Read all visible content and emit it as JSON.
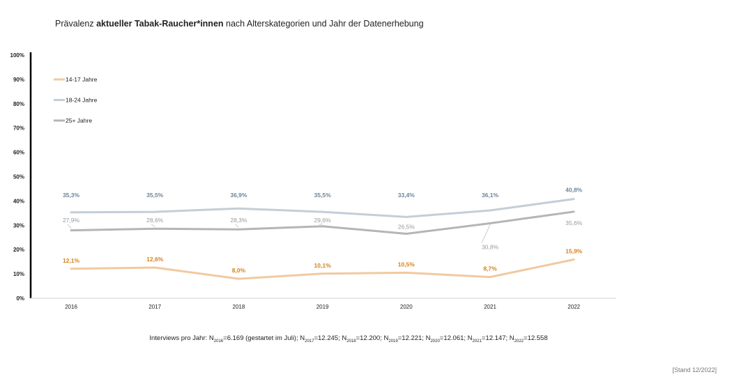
{
  "title": {
    "prefix": "Prävalenz ",
    "bold": "aktueller Tabak-Raucher*innen",
    "suffix": " nach Alterskategorien und Jahr der Datenerhebung"
  },
  "footnote": {
    "prefix": "Interviews pro Jahr: ",
    "items": [
      {
        "n": "N",
        "sub": "2016",
        "val": "=6.169 (gestartet im Juli)"
      },
      {
        "n": "; N",
        "sub": "2017",
        "val": "=12.245"
      },
      {
        "n": "; N",
        "sub": "2018",
        "val": "=12.200"
      },
      {
        "n": "; N",
        "sub": "2019",
        "val": "=12.221"
      },
      {
        "n": "; N",
        "sub": "2020",
        "val": "=12.061"
      },
      {
        "n": "; N",
        "sub": "2021",
        "val": "=12.147"
      },
      {
        "n": "; N",
        "sub": "2022",
        "val": "=12.558"
      }
    ]
  },
  "stand": "[Stand 12/2022]",
  "chart_data": {
    "type": "line",
    "x": [
      "2016",
      "2017",
      "2018",
      "2019",
      "2020",
      "2021",
      "2022"
    ],
    "ylim": [
      0,
      100
    ],
    "yticks": [
      "0%",
      "10%",
      "20%",
      "30%",
      "40%",
      "50%",
      "60%",
      "70%",
      "80%",
      "90%",
      "100%"
    ],
    "grid": false,
    "legend": "top-left",
    "series": [
      {
        "name": "14-17 Jahre",
        "color": "#f1c9a0",
        "label_color": "#d4821e",
        "values": [
          12.1,
          12.6,
          8.0,
          10.1,
          10.5,
          8.7,
          15.9
        ],
        "labels": [
          "12,1%",
          "12,6%",
          "8,0%",
          "10,1%",
          "10,5%",
          "8,7%",
          "15,9%"
        ]
      },
      {
        "name": "18-24 Jahre",
        "color": "#c3ced8",
        "label_color": "#6e859a",
        "values": [
          35.3,
          35.5,
          36.9,
          35.5,
          33.4,
          36.1,
          40.8
        ],
        "labels": [
          "35,3%",
          "35,5%",
          "36,9%",
          "35,5%",
          "33,4%",
          "36,1%",
          "40,8%"
        ]
      },
      {
        "name": "25+ Jahre",
        "color": "#b5b5b5",
        "label_color": "#999999",
        "values": [
          27.9,
          28.6,
          28.3,
          29.6,
          26.5,
          30.8,
          35.6
        ],
        "labels": [
          "27,9%",
          "28,6%",
          "28,3%",
          "29,6%",
          "26,5%",
          "30,8%",
          "35,6%"
        ]
      }
    ]
  }
}
